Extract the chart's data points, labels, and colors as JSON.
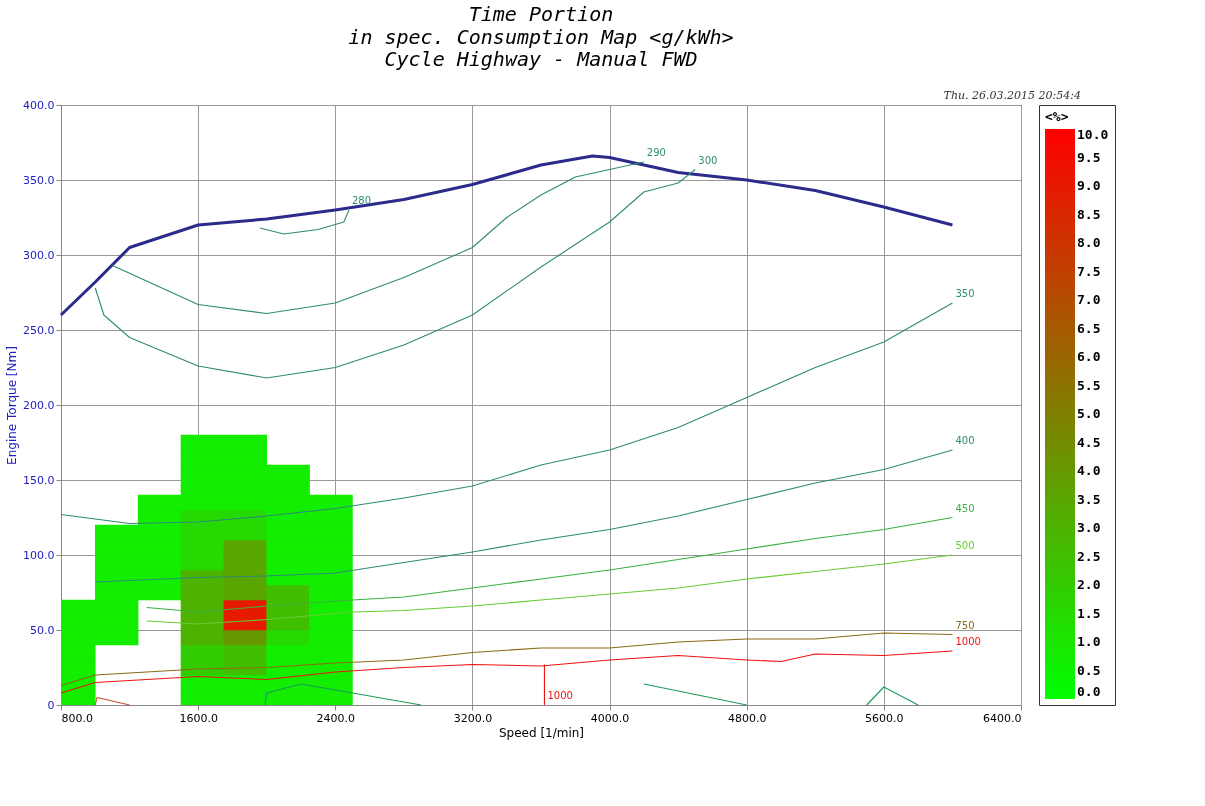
{
  "chart_data": {
    "type": "line",
    "title": "Time Portion",
    "subtitle": "in spec. Consumption Map <g/kWh>\nCycle Highway      -  Manual FWD",
    "xlabel": "Speed [1/min]",
    "ylabel": "Engine Torque [Nm]",
    "clabel": "<%>",
    "xlim": [
      800,
      6400
    ],
    "ylim": [
      0,
      400
    ],
    "xticks": [
      {
        "value": 800,
        "label": "800.0"
      },
      {
        "value": 1600,
        "label": "1600.0"
      },
      {
        "value": 2400,
        "label": "2400.0"
      },
      {
        "value": 3200,
        "label": "3200.0"
      },
      {
        "value": 4000,
        "label": "4000.0"
      },
      {
        "value": 4800,
        "label": "4800.0"
      },
      {
        "value": 5600,
        "label": "5600.0"
      },
      {
        "value": 6400,
        "label": "6400.0"
      }
    ],
    "yticks": [
      0,
      {
        "value": 50,
        "label": "50.0"
      },
      {
        "value": 100,
        "label": "100.0"
      },
      {
        "value": 150,
        "label": "150.0"
      },
      {
        "value": 200,
        "label": "200.0"
      },
      {
        "value": 250,
        "label": "250.0"
      },
      {
        "value": 300,
        "label": "300.0"
      },
      {
        "value": 350,
        "label": "350.0"
      },
      {
        "value": 400,
        "label": "400.0"
      }
    ],
    "clim": [
      0,
      10
    ],
    "cticks": [
      {
        "value": 0,
        "label": "0.0"
      },
      {
        "value": 0.5,
        "label": "0.5"
      },
      {
        "value": 1,
        "label": "1.0"
      },
      {
        "value": 1.5,
        "label": "1.5"
      },
      {
        "value": 2,
        "label": "2.0"
      },
      {
        "value": 2.5,
        "label": "2.5"
      },
      {
        "value": 3,
        "label": "3.0"
      },
      {
        "value": 3.5,
        "label": "3.5"
      },
      {
        "value": 4,
        "label": "4.0"
      },
      {
        "value": 4.5,
        "label": "4.5"
      },
      {
        "value": 5,
        "label": "5.0"
      },
      {
        "value": 5.5,
        "label": "5.5"
      },
      {
        "value": 6,
        "label": "6.0"
      },
      {
        "value": 6.5,
        "label": "6.5"
      },
      {
        "value": 7,
        "label": "7.0"
      },
      {
        "value": 7.5,
        "label": "7.5"
      },
      {
        "value": 8,
        "label": "8.0"
      },
      {
        "value": 8.5,
        "label": "8.5"
      },
      {
        "value": 9,
        "label": "9.0"
      },
      {
        "value": 9.5,
        "label": "9.5"
      },
      {
        "value": 10,
        "label": "10.0"
      }
    ],
    "colors": [
      "#00ff00",
      "#ff0000"
    ],
    "grid": true,
    "annotations": [
      "Thu. 26.03.2015 20:54:4"
    ],
    "series": [
      {
        "type": "scatter",
        "marker": "square",
        "x": [
          875,
          875,
          875,
          875,
          875,
          875,
          875,
          1125,
          1125,
          1125,
          1125,
          1125,
          1125,
          1125,
          1125,
          1375,
          1375,
          1375,
          1375,
          1375,
          1375,
          1375,
          1625,
          1625,
          1625,
          1625,
          1625,
          1625,
          1625,
          1625,
          1625,
          1625,
          1625,
          1625,
          1625,
          1625,
          1625,
          1625,
          1625,
          1625,
          1875,
          1875,
          1875,
          1875,
          1875,
          1875,
          1875,
          1875,
          1875,
          1875,
          1875,
          1875,
          1875,
          1875,
          1875,
          1875,
          1875,
          1875,
          2125,
          2125,
          2125,
          2125,
          2125,
          2125,
          2125,
          2125,
          2125,
          2125,
          2125,
          2125,
          2125,
          2125,
          2125,
          2125,
          2375,
          2375,
          2375,
          2375,
          2375,
          2375,
          2375,
          2375,
          2375,
          2375,
          2375,
          2375,
          2375,
          2375
        ],
        "values": [
          5,
          15,
          25,
          35,
          45,
          55,
          65,
          45,
          55,
          65,
          75,
          85,
          95,
          105,
          115,
          75,
          85,
          95,
          105,
          115,
          125,
          135,
          5,
          15,
          25,
          35,
          45,
          55,
          65,
          75,
          85,
          95,
          105,
          115,
          125,
          135,
          145,
          155,
          165,
          175,
          5,
          15,
          25,
          35,
          45,
          55,
          65,
          75,
          85,
          95,
          105,
          115,
          125,
          135,
          145,
          155,
          165,
          175,
          5,
          15,
          25,
          35,
          45,
          55,
          65,
          75,
          85,
          95,
          105,
          115,
          125,
          135,
          145,
          155,
          5,
          15,
          25,
          35,
          45,
          55,
          65,
          75,
          85,
          95,
          105,
          115,
          125,
          135
        ],
        "cvalues": [
          0.7,
          0.7,
          0.7,
          0.7,
          0.7,
          0.7,
          0.7,
          0.7,
          0.7,
          0.7,
          0.7,
          0.7,
          0.7,
          0.7,
          0.7,
          0.7,
          0.7,
          0.7,
          0.7,
          0.7,
          0.7,
          0.7,
          0.7,
          0.7,
          2,
          2,
          3,
          3,
          3,
          3,
          3,
          1.5,
          1.5,
          1.5,
          1.5,
          0.7,
          0.7,
          0.7,
          0.7,
          0.7,
          0.7,
          0.7,
          2.5,
          2.5,
          4,
          9,
          9,
          3.5,
          3.5,
          3.5,
          3.5,
          1.5,
          1.5,
          0.7,
          0.7,
          0.7,
          0.7,
          0.7,
          0.7,
          0.7,
          0.7,
          0.7,
          1.5,
          2.5,
          2.5,
          2.5,
          0.7,
          0.7,
          0.7,
          0.7,
          0.7,
          0.7,
          0.7,
          0.7,
          0.7,
          0.7,
          0.7,
          0.7,
          0.7,
          0.7,
          0.7,
          0.7,
          0.7,
          0.7,
          0.7,
          0.7,
          0.7,
          0.7
        ],
        "colors": [
          "#12ed00",
          "#12ed00",
          "#12ed00",
          "#12ed00",
          "#12ed00",
          "#12ed00",
          "#12ed00",
          "#12ed00",
          "#12ed00",
          "#12ed00",
          "#12ed00",
          "#12ed00",
          "#12ed00",
          "#12ed00",
          "#12ed00",
          "#12ed00",
          "#12ed00",
          "#12ed00",
          "#12ed00",
          "#12ed00",
          "#12ed00",
          "#12ed00",
          "#12ed00",
          "#12ed00",
          "#33cc00",
          "#33cc00",
          "#4db200",
          "#4db200",
          "#4db200",
          "#4db200",
          "#4db200",
          "#26d900",
          "#26d900",
          "#26d900",
          "#26d900",
          "#12ed00",
          "#12ed00",
          "#12ed00",
          "#12ed00",
          "#12ed00",
          "#12ed00",
          "#12ed00",
          "#40bf00",
          "#40bf00",
          "#669900",
          "#e61a00",
          "#e61a00",
          "#59a600",
          "#59a600",
          "#59a600",
          "#59a600",
          "#26d900",
          "#26d900",
          "#12ed00",
          "#12ed00",
          "#12ed00",
          "#12ed00",
          "#12ed00",
          "#12ed00",
          "#12ed00",
          "#12ed00",
          "#12ed00",
          "#26d900",
          "#40bf00",
          "#40bf00",
          "#40bf00",
          "#12ed00",
          "#12ed00",
          "#12ed00",
          "#12ed00",
          "#12ed00",
          "#12ed00",
          "#12ed00",
          "#12ed00",
          "#12ed00",
          "#12ed00",
          "#12ed00",
          "#12ed00",
          "#12ed00",
          "#12ed00",
          "#12ed00",
          "#12ed00",
          "#12ed00",
          "#12ed00",
          "#12ed00",
          "#12ed00",
          "#12ed00",
          "#12ed00"
        ]
      },
      {
        "color": "#2b2b8c",
        "x": [
          800,
          1000,
          1200,
          1600,
          2000,
          2400,
          2800,
          3200,
          3600,
          3900,
          4000,
          4400,
          4800,
          5200,
          5600,
          6000
        ],
        "values": [
          260,
          282,
          305,
          320,
          324,
          330,
          337,
          347,
          360,
          366,
          365,
          355,
          350,
          343,
          332,
          320
        ]
      },
      {
        "name": "280",
        "color": "#2e8b74",
        "x": [
          1960,
          2100,
          2300,
          2450,
          2480
        ],
        "values": [
          318,
          314,
          317,
          322,
          330
        ]
      },
      {
        "name": "290",
        "color": "#2e8b74",
        "x": [
          1100,
          1600,
          2000,
          2400,
          2800,
          3200,
          3400,
          3600,
          3800,
          4000,
          4200
        ],
        "values": [
          293,
          267,
          261,
          268,
          285,
          305,
          325,
          340,
          352,
          357,
          362
        ]
      },
      {
        "name": "300",
        "color": "#2e8b74",
        "x": [
          1000,
          1050,
          1200,
          1600,
          2000,
          2400,
          2800,
          3200,
          3600,
          4000,
          4200,
          4400,
          4500
        ],
        "values": [
          278,
          260,
          245,
          226,
          218,
          225,
          240,
          260,
          292,
          322,
          342,
          348,
          357
        ]
      },
      {
        "name": "350",
        "color": "#2e8b74",
        "x": [
          800,
          1200,
          1600,
          2000,
          2400,
          2800,
          3200,
          3600,
          4000,
          4400,
          4800,
          5200,
          5600,
          6000
        ],
        "values": [
          127,
          121,
          122,
          126,
          131,
          138,
          146,
          160,
          170,
          185,
          205,
          225,
          242,
          268
        ]
      },
      {
        "name": "400",
        "color": "#2e8b74",
        "x": [
          1000,
          1600,
          2000,
          2400,
          2800,
          3200,
          3600,
          4000,
          4400,
          4800,
          5200,
          5600,
          6000
        ],
        "values": [
          82,
          85,
          86,
          88,
          95,
          102,
          110,
          117,
          126,
          137,
          148,
          157,
          170
        ]
      },
      {
        "name": "450",
        "color": "#3cb043",
        "x": [
          1300,
          1600,
          2000,
          2500,
          2800,
          3200,
          3600,
          4000,
          4400,
          4800,
          5200,
          5600,
          6000
        ],
        "values": [
          65,
          62,
          66,
          70,
          72,
          78,
          84,
          90,
          97,
          104,
          111,
          117,
          125
        ]
      },
      {
        "name": "500",
        "color": "#66cc33",
        "x": [
          1300,
          1600,
          2000,
          2500,
          2800,
          3200,
          3600,
          4000,
          4400,
          4800,
          5200,
          5600,
          6000
        ],
        "values": [
          56,
          54,
          57,
          62,
          63,
          66,
          70,
          74,
          78,
          84,
          89,
          94,
          100
        ]
      },
      {
        "name": "750",
        "color": "#8b6914",
        "x": [
          800,
          1000,
          1600,
          2000,
          2400,
          2800,
          3200,
          3600,
          4000,
          4400,
          4800,
          5200,
          5600,
          6000
        ],
        "values": [
          13,
          20,
          24,
          25,
          28,
          30,
          35,
          38,
          38,
          42,
          44,
          44,
          48,
          47
        ]
      },
      {
        "name": "1000",
        "color": "#ee1111",
        "x": [
          800,
          1000,
          1600,
          2000,
          2400,
          2800,
          3200,
          3600,
          4000,
          4400,
          4800,
          5000,
          5200,
          5600,
          6000
        ],
        "values": [
          8,
          15,
          19,
          17,
          22,
          25,
          27,
          26,
          30,
          33,
          30,
          29,
          34,
          33,
          36
        ]
      },
      {
        "name": "1000",
        "color": "#ee1111",
        "x": [
          3620,
          3620
        ],
        "values": [
          27,
          0
        ]
      },
      {
        "color": "#1a9a5a",
        "x": [
          1990,
          2000,
          2200,
          2900
        ],
        "values": [
          0,
          8,
          14,
          0
        ]
      },
      {
        "color": "#1a9a5a",
        "x": [
          4200,
          4800
        ],
        "values": [
          14,
          0
        ]
      },
      {
        "color": "#1a9a5a",
        "x": [
          5500,
          5600,
          5800
        ],
        "values": [
          0,
          12,
          0
        ]
      },
      {
        "color": "#c0502a",
        "x": [
          1000,
          1010,
          1200
        ],
        "values": [
          0,
          5,
          0
        ]
      }
    ]
  }
}
